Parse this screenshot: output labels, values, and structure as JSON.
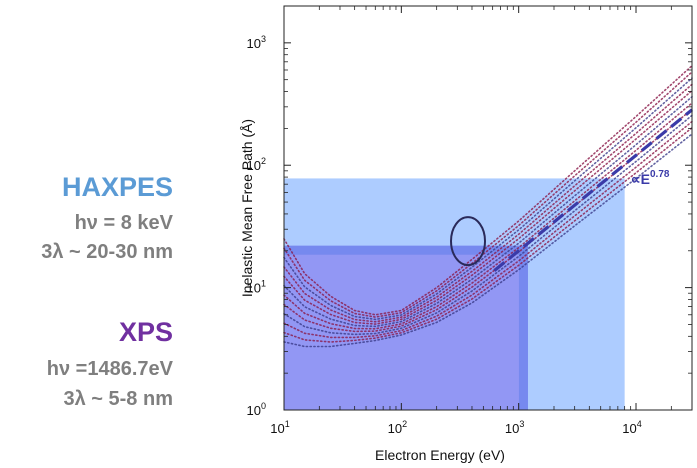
{
  "haxpes": {
    "title": "HAXPES",
    "energy": "hν = 8 keV",
    "depth": "3λ ~ 20-30 nm"
  },
  "xps": {
    "title": "XPS",
    "energy": "hν =1486.7eV",
    "depth": "3λ ~ 5-8 nm"
  },
  "colors": {
    "haxpes": "#5b9bd5",
    "xps": "#7030a0",
    "side_text": "#7f7f7f",
    "fit_line": "#3a3aa8",
    "curves": "#8b1a4a",
    "haxpes_fill": "#9fc3ff",
    "xps_fill": "#8a86f0"
  },
  "chart_data": {
    "type": "line",
    "xscale": "log",
    "yscale": "log",
    "xlim": [
      10,
      30000
    ],
    "ylim": [
      1,
      2000
    ],
    "xlabel": "Electron Energy (eV)",
    "ylabel": "Inelastic Mean Free Path (Å)",
    "x_ticks": [
      {
        "value": 10,
        "base": "10",
        "exp": "1"
      },
      {
        "value": 100,
        "base": "10",
        "exp": "2"
      },
      {
        "value": 1000,
        "base": "10",
        "exp": "3"
      },
      {
        "value": 10000,
        "base": "10",
        "exp": "4"
      }
    ],
    "y_ticks": [
      {
        "value": 1,
        "base": "10",
        "exp": "0"
      },
      {
        "value": 10,
        "base": "10",
        "exp": "1"
      },
      {
        "value": 100,
        "base": "10",
        "exp": "2"
      },
      {
        "value": 1000,
        "base": "10",
        "exp": "3"
      }
    ],
    "annotation": {
      "prefix": "∝E",
      "exponent": "0.78",
      "at": [
        9000,
        70
      ]
    },
    "regions": [
      {
        "name": "HAXPES",
        "x": [
          10,
          8000
        ],
        "y": [
          1,
          78
        ]
      },
      {
        "name": "XPS",
        "x": [
          10,
          1200
        ],
        "y": [
          1,
          22
        ]
      }
    ],
    "fit_line": {
      "exponent": 0.78,
      "x": [
        620,
        30000
      ],
      "y_at_1000": 20
    },
    "circle": {
      "center": [
        370,
        24
      ]
    },
    "series": [
      {
        "name": "IMFP bundle",
        "x": [
          10,
          15,
          25,
          40,
          60,
          100,
          200,
          400,
          1000,
          3000,
          10000,
          30000
        ],
        "y_low": [
          3.6,
          3.3,
          3.3,
          3.5,
          3.7,
          4.1,
          5.2,
          7.5,
          14,
          32,
          78,
          180
        ],
        "y_high": [
          25,
          13,
          8.5,
          6.5,
          6.0,
          6.5,
          10,
          17,
          35,
          90,
          250,
          650
        ]
      }
    ]
  }
}
